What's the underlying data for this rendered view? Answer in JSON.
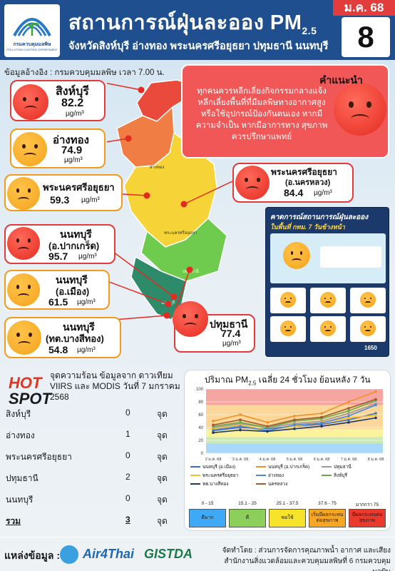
{
  "header": {
    "logo_text": "กรมควบคุมมลพิษ",
    "logo_sub": "POLLUTION CONTROL DEPARTMENT",
    "title": "สถานการณ์ฝุ่นละออง PM",
    "title_sub": "2.5",
    "subtitle": "จังหวัดสิงห์บุรี อ่างทอง พระนครศรีอยุธยา ปทุมธานี นนทบุรี",
    "month": "ม.ค. 68",
    "day": "8"
  },
  "reference": "ข้อมูลอ้างอิง : กรมควบคุมมลพิษ เวลา 7.00 น.",
  "advice": {
    "title": "คำแนะนำ",
    "body": "ทุกคนควรหลีกเลี่ยงกิจกรรมกลางแจ้ง หลีกเลี่ยงพื้นที่ที่มีมลพิษทางอากาศสูง หรือใช้อุปกรณ์ป้องกันตนเอง หากมีความจำเป็น หากมีอาการทาง สุขภาพควรปรึกษาแพทย์"
  },
  "stations": [
    {
      "name": "สิงห์บุรี",
      "value": "82.2",
      "unit": "µg/m³",
      "level": "red"
    },
    {
      "name": "อ่างทอง",
      "value": "74.9",
      "unit": "µg/m³",
      "level": "orange"
    },
    {
      "name": "พระนครศรีอยุธยา",
      "value": "59.3",
      "unit": "µg/m³",
      "level": "orange"
    },
    {
      "name": "พระนครศรีอยุธยา",
      "sub": "(อ.นครหลวง)",
      "value": "84.4",
      "unit": "µg/m³",
      "level": "red"
    },
    {
      "name": "นนทบุรี",
      "sub": "(อ.ปากเกร็ด)",
      "value": "95.7",
      "unit": "µg/m³",
      "level": "red"
    },
    {
      "name": "นนทบุรี",
      "sub": "(อ.เมือง)",
      "value": "61.5",
      "unit": "µg/m³",
      "level": "orange"
    },
    {
      "name": "ปทุมธานี",
      "value": "77.4",
      "unit": "µg/m³",
      "level": "red"
    },
    {
      "name": "นนทบุรี",
      "sub": "(ทต.บางสีทอง)",
      "value": "54.8",
      "unit": "µg/m³",
      "level": "orange"
    }
  ],
  "map_labels": [
    "สิงห์บุรี",
    "อ่างทอง",
    "พระนครศรีอยุธยา",
    "ปทุมธานี",
    "นนทบุรี"
  ],
  "forecast": {
    "title": "คาดการณ์สถานการณ์ฝุ่นละออง",
    "sub": "ในพื้นที่ กทม. 7 วันข้างหน้า",
    "footer": "1650"
  },
  "hotspot": {
    "hot": "HOT",
    "spot": "SPOT",
    "desc": "จุดความร้อน ข้อมูลจาก ดาวเทียม VIIRS และ MODIS วันที่ 7 มกราคม 2568",
    "unit": "จุด",
    "rows": [
      {
        "name": "สิงห์บุรี",
        "count": "0"
      },
      {
        "name": "อ่างทอง",
        "count": "1"
      },
      {
        "name": "พระนครศรีอยุธยา",
        "count": "0"
      },
      {
        "name": "ปทุมธานี",
        "count": "2"
      },
      {
        "name": "นนทบุรี",
        "count": "0"
      }
    ],
    "total_label": "รวม",
    "total": "3"
  },
  "chart_data": {
    "type": "line",
    "title": "ปริมาณ PM2.5 เฉลี่ย 24 ชั่วโมง ย้อนหลัง 7 วัน",
    "title_main": "ปริมาณ PM",
    "title_sub": "2.5",
    "title_rest": " เฉลี่ย 24 ชั่วโมง ย้อนหลัง 7 วัน",
    "ylim": [
      0,
      100
    ],
    "yticks": [
      0,
      20,
      40,
      60,
      80,
      100
    ],
    "categories": [
      "2 ม.ค. 68",
      "3 ม.ค. 68",
      "4 ม.ค. 68",
      "5 ม.ค. 68",
      "6 ม.ค. 68",
      "7 ม.ค. 68",
      "8 ม.ค. 68"
    ],
    "series": [
      {
        "name": "นนทบุรี (อ.เมือง)",
        "color": "#3b6fc4",
        "values": [
          35,
          40,
          38,
          42,
          45,
          52,
          62
        ]
      },
      {
        "name": "นนทบุรี (อ.ปากเกร็ด)",
        "color": "#f0902a",
        "values": [
          50,
          60,
          48,
          58,
          62,
          80,
          96
        ]
      },
      {
        "name": "ปทุมธานี",
        "color": "#9a9a9a",
        "values": [
          40,
          46,
          40,
          46,
          50,
          62,
          77
        ]
      },
      {
        "name": "พระนครศรีอยุธยา",
        "color": "#f2c12e",
        "values": [
          38,
          44,
          36,
          42,
          48,
          55,
          59
        ]
      },
      {
        "name": "อ่างทอง",
        "color": "#4f86d6",
        "values": [
          36,
          42,
          35,
          44,
          47,
          58,
          75
        ]
      },
      {
        "name": "สิงห์บุรี",
        "color": "#6aa84f",
        "values": [
          42,
          48,
          40,
          50,
          54,
          66,
          82
        ]
      },
      {
        "name": "ทต.บางสีทอง",
        "color": "#1f3864",
        "values": [
          32,
          36,
          34,
          38,
          42,
          48,
          55
        ]
      },
      {
        "name": "นครหลวง",
        "color": "#a05a2c",
        "values": [
          44,
          52,
          42,
          52,
          56,
          70,
          84
        ]
      }
    ],
    "scale": [
      {
        "range": "0 - 15",
        "label": "ดีมาก",
        "color": "#3fa9f5"
      },
      {
        "range": "15.1 - 25",
        "label": "ดี",
        "color": "#8ccf5a"
      },
      {
        "range": "25.1 - 37.5",
        "label": "พอใช้",
        "color": "#f7e329"
      },
      {
        "range": "37.6 - 75",
        "label": "เริ่มมีผลกระทบต่อสุขภาพ",
        "color": "#f7a623"
      },
      {
        "range": "มากกว่า 75",
        "label": "มีผลกระทบต่อสุขภาพ",
        "color": "#ea3a2d"
      }
    ]
  },
  "footer": {
    "source_label": "แหล่งข้อมูล :",
    "partners": [
      "Air4Thai",
      "GISTDA"
    ],
    "producer_line1": "จัดทำโดย : ส่วนการจัดการคุณภาพน้ำ อากาศ และเสียง",
    "producer_line2": "สำนักงานสิ่งแวดล้อมและควบคุมมลพิษที่ 6 กรมควบคุมมลพิษ"
  }
}
